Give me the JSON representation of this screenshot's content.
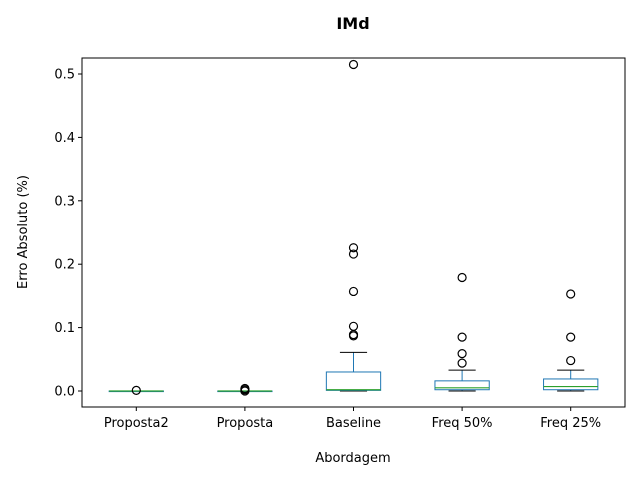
{
  "chart_data": {
    "type": "box",
    "title": "IMd",
    "xlabel": "Abordagem",
    "ylabel": "Erro Absoluto (%)",
    "ylim": [
      -0.025,
      0.54
    ],
    "yticks": [
      "0.0",
      "0.1",
      "0.2",
      "0.3",
      "0.4",
      "0.5"
    ],
    "ytick_values": [
      0.0,
      0.1,
      0.2,
      0.3,
      0.4,
      0.5
    ],
    "grid": false,
    "categories": [
      "Proposta2",
      "Proposta",
      "Baseline",
      "Freq 50%",
      "Freq 25%"
    ],
    "series": [
      {
        "whisker_low": 0.0,
        "q1": 0.0,
        "median": 0.0,
        "q3": 0.0,
        "whisker_high": 0.0,
        "outliers": [
          0.001
        ]
      },
      {
        "whisker_low": 0.0,
        "q1": 0.0,
        "median": 0.0,
        "q3": 0.0,
        "whisker_high": 0.0,
        "outliers": [
          0.0,
          0.002,
          0.004
        ]
      },
      {
        "whisker_low": 0.0,
        "q1": 0.001,
        "median": 0.002,
        "q3": 0.03,
        "whisker_high": 0.061,
        "outliers": [
          0.087,
          0.089,
          0.102,
          0.157,
          0.216,
          0.226,
          0.515
        ]
      },
      {
        "whisker_low": 0.0,
        "q1": 0.002,
        "median": 0.005,
        "q3": 0.016,
        "whisker_high": 0.033,
        "outliers": [
          0.044,
          0.059,
          0.085,
          0.179
        ]
      },
      {
        "whisker_low": 0.0,
        "q1": 0.002,
        "median": 0.007,
        "q3": 0.019,
        "whisker_high": 0.033,
        "outliers": [
          0.048,
          0.085,
          0.153
        ]
      }
    ],
    "colors": {
      "box": "#1f77b4",
      "median": "#2ca02c",
      "cap": "#000000",
      "outlier": "#000000"
    }
  }
}
